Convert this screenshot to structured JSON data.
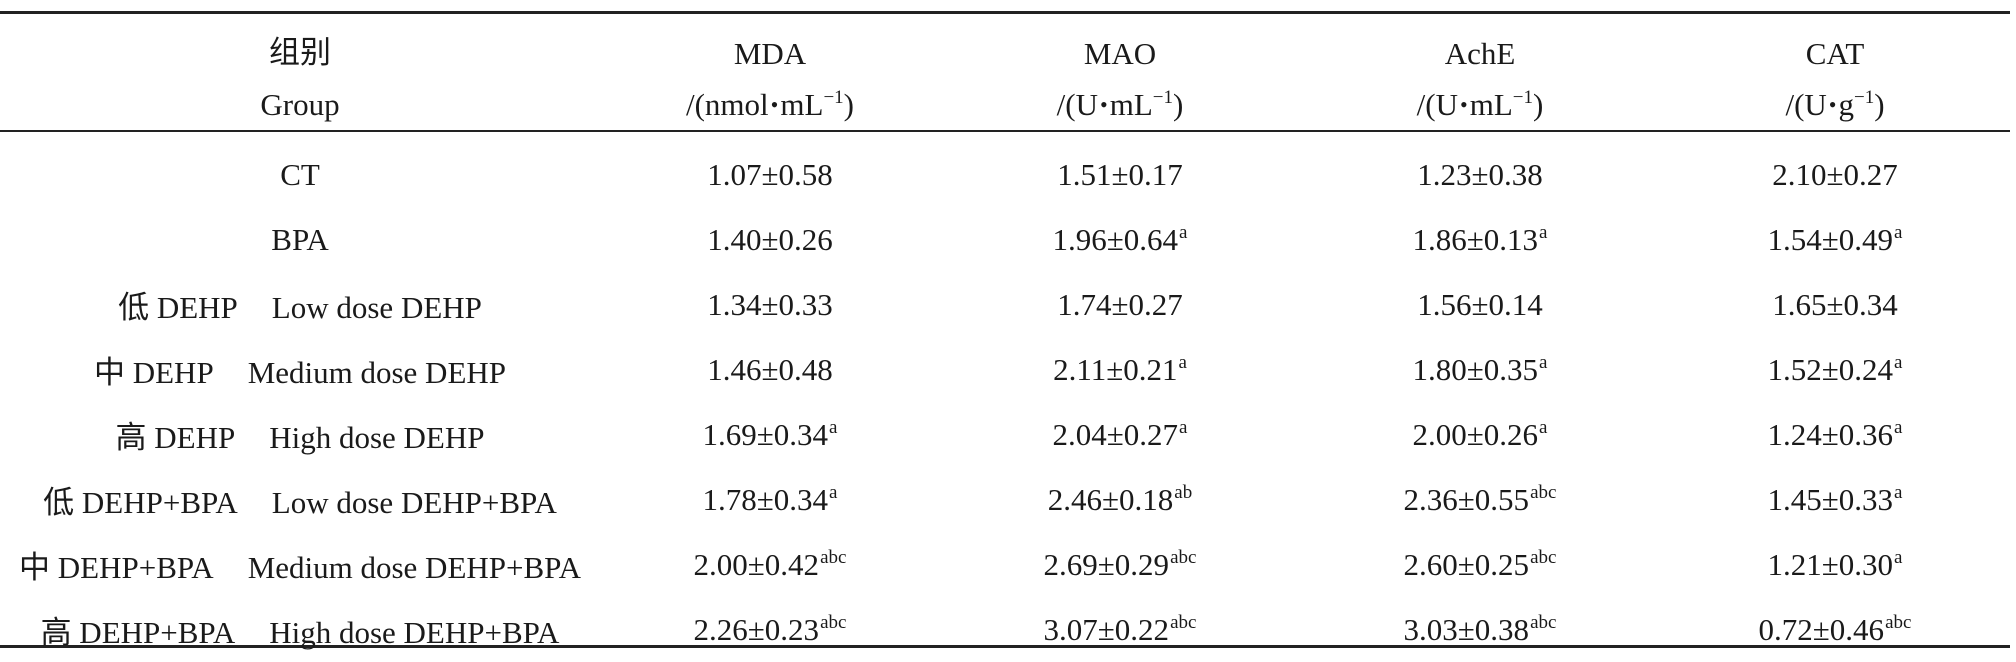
{
  "table": {
    "header": {
      "group_zh": "组别",
      "group_en": "Group",
      "columns": [
        {
          "name": "MDA",
          "unit_pre": "/(nmol",
          "unit_mid": "mL",
          "unit_sup": "−1",
          "unit_post": ")"
        },
        {
          "name": "MAO",
          "unit_pre": "/(U",
          "unit_mid": "mL",
          "unit_sup": "−1",
          "unit_post": ")"
        },
        {
          "name": "AchE",
          "unit_pre": "/(U",
          "unit_mid": "mL",
          "unit_sup": "−1",
          "unit_post": ")"
        },
        {
          "name": "CAT",
          "unit_pre": "/(U",
          "unit_mid": "g",
          "unit_sup": "−1",
          "unit_post": ")"
        }
      ]
    },
    "rows": [
      {
        "group_zh": "",
        "group_en": "CT",
        "cells": [
          {
            "v": "1.07±0.58",
            "s": ""
          },
          {
            "v": "1.51±0.17",
            "s": ""
          },
          {
            "v": "1.23±0.38",
            "s": ""
          },
          {
            "v": "2.10±0.27",
            "s": ""
          }
        ]
      },
      {
        "group_zh": "",
        "group_en": "BPA",
        "cells": [
          {
            "v": "1.40±0.26",
            "s": ""
          },
          {
            "v": "1.96±0.64",
            "s": "a"
          },
          {
            "v": "1.86±0.13",
            "s": "a"
          },
          {
            "v": "1.54±0.49",
            "s": "a"
          }
        ]
      },
      {
        "group_zh": "低 DEHP",
        "group_en": "Low dose DEHP",
        "cells": [
          {
            "v": "1.34±0.33",
            "s": ""
          },
          {
            "v": "1.74±0.27",
            "s": ""
          },
          {
            "v": "1.56±0.14",
            "s": ""
          },
          {
            "v": "1.65±0.34",
            "s": ""
          }
        ]
      },
      {
        "group_zh": "中 DEHP",
        "group_en": "Medium dose DEHP",
        "cells": [
          {
            "v": "1.46±0.48",
            "s": ""
          },
          {
            "v": "2.11±0.21",
            "s": "a"
          },
          {
            "v": "1.80±0.35",
            "s": "a"
          },
          {
            "v": "1.52±0.24",
            "s": "a"
          }
        ]
      },
      {
        "group_zh": "高 DEHP",
        "group_en": "High dose DEHP",
        "cells": [
          {
            "v": "1.69±0.34",
            "s": "a"
          },
          {
            "v": "2.04±0.27",
            "s": "a"
          },
          {
            "v": "2.00±0.26",
            "s": "a"
          },
          {
            "v": "1.24±0.36",
            "s": "a"
          }
        ]
      },
      {
        "group_zh": "低 DEHP+BPA",
        "group_en": "Low dose DEHP+BPA",
        "cells": [
          {
            "v": "1.78±0.34",
            "s": "a"
          },
          {
            "v": "2.46±0.18",
            "s": "ab"
          },
          {
            "v": "2.36±0.55",
            "s": "abc"
          },
          {
            "v": "1.45±0.33",
            "s": "a"
          }
        ]
      },
      {
        "group_zh": "中 DEHP+BPA",
        "group_en": "Medium dose DEHP+BPA",
        "cells": [
          {
            "v": "2.00±0.42",
            "s": "abc"
          },
          {
            "v": "2.69±0.29",
            "s": "abc"
          },
          {
            "v": "2.60±0.25",
            "s": "abc"
          },
          {
            "v": "1.21±0.30",
            "s": "a"
          }
        ]
      },
      {
        "group_zh": "高 DEHP+BPA",
        "group_en": "High dose DEHP+BPA",
        "cells": [
          {
            "v": "2.26±0.23",
            "s": "abc"
          },
          {
            "v": "3.07±0.22",
            "s": "abc"
          },
          {
            "v": "3.03±0.38",
            "s": "abc"
          },
          {
            "v": "0.72±0.46",
            "s": "abc"
          }
        ]
      }
    ]
  }
}
